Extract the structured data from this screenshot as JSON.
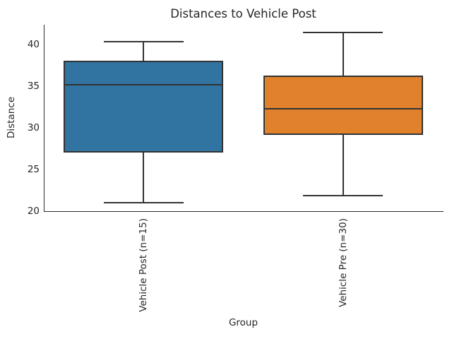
{
  "figure": {
    "background": "#ffffff",
    "text_color": "#262626",
    "spine_color": "#2b2b2b"
  },
  "chart_data": {
    "type": "box",
    "title": "Distances to Vehicle Post",
    "xlabel": "Group",
    "ylabel": "Distance",
    "ylim": [
      20,
      42.4
    ],
    "yticks": [
      20,
      25,
      30,
      35,
      40
    ],
    "grid": false,
    "legend": null,
    "edge_color": "#333333",
    "categories": [
      "Vehicle Post (n=15)",
      "Vehicle Pre (n=30)"
    ],
    "series": [
      {
        "name": "Vehicle Post (n=15)",
        "color": "#3274a1",
        "whisker_low": 21.0,
        "q1": 27.0,
        "median": 35.2,
        "q3": 38.1,
        "whisker_high": 40.4
      },
      {
        "name": "Vehicle Pre (n=30)",
        "color": "#e1812c",
        "whisker_low": 21.8,
        "q1": 29.1,
        "median": 32.3,
        "q3": 36.3,
        "whisker_high": 41.5
      }
    ]
  }
}
